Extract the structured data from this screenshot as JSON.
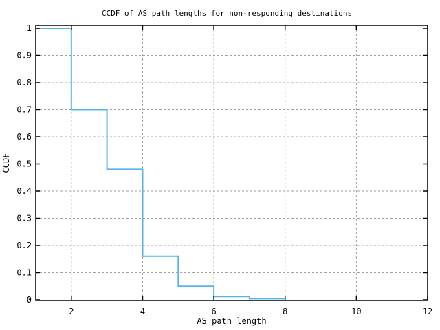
{
  "window": {
    "background": "#ffffff"
  },
  "chart_data": {
    "type": "line",
    "subtype": "ccdf-step",
    "title": "CCDF of AS path lengths for non-responding destinations",
    "xlabel": "AS path length",
    "ylabel": "CCDF",
    "xlim": [
      1,
      12
    ],
    "ylim": [
      0,
      1
    ],
    "grid": true,
    "legend": "none",
    "line_color": "#56B4E9",
    "grid_color": "#a0a0a0",
    "border_color": "#000000",
    "xticks": [
      {
        "label": "2",
        "value": 2
      },
      {
        "label": "4",
        "value": 4
      },
      {
        "label": "6",
        "value": 6
      },
      {
        "label": "8",
        "value": 8
      },
      {
        "label": "10",
        "value": 10
      },
      {
        "label": "12",
        "value": 12
      }
    ],
    "yticks": [
      {
        "label": "0",
        "value": 0
      },
      {
        "label": "0.1",
        "value": 0.1
      },
      {
        "label": "0.2",
        "value": 0.2
      },
      {
        "label": "0.3",
        "value": 0.3
      },
      {
        "label": "0.4",
        "value": 0.4
      },
      {
        "label": "0.5",
        "value": 0.5
      },
      {
        "label": "0.6",
        "value": 0.6
      },
      {
        "label": "0.7",
        "value": 0.7
      },
      {
        "label": "0.8",
        "value": 0.8
      },
      {
        "label": "0.9",
        "value": 0.9
      },
      {
        "label": "1",
        "value": 1
      }
    ],
    "steps": [
      {
        "x_from": 1,
        "x_to": 2,
        "ccdf": 1.0
      },
      {
        "x_from": 2,
        "x_to": 3,
        "ccdf": 0.7
      },
      {
        "x_from": 3,
        "x_to": 4,
        "ccdf": 0.48
      },
      {
        "x_from": 4,
        "x_to": 5,
        "ccdf": 0.16
      },
      {
        "x_from": 5,
        "x_to": 6,
        "ccdf": 0.05
      },
      {
        "x_from": 6,
        "x_to": 7,
        "ccdf": 0.012
      },
      {
        "x_from": 7,
        "x_to": 8,
        "ccdf": 0.004
      }
    ]
  }
}
